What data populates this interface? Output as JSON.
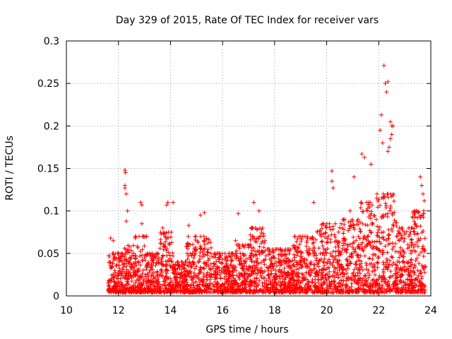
{
  "chart_data": {
    "type": "scatter",
    "title": "Day 329 of 2015, Rate Of TEC Index for receiver vars",
    "xlabel": "GPS time / hours",
    "ylabel": "ROTI / TECUs",
    "xlim": [
      10,
      24
    ],
    "ylim": [
      0,
      0.3
    ],
    "x_ticks": [
      10,
      12,
      14,
      16,
      18,
      20,
      22,
      24
    ],
    "y_ticks": [
      0,
      0.05,
      0.1,
      0.15,
      0.2,
      0.25,
      0.3
    ],
    "x_tick_labels": [
      "10",
      "12",
      "14",
      "16",
      "18",
      "20",
      "22",
      "24"
    ],
    "y_tick_labels": [
      "0",
      "0.05",
      "0.1",
      "0.15",
      "0.2",
      "0.25",
      "0.3"
    ],
    "grid": true,
    "marker": "+",
    "marker_color": "#ff0000",
    "x_range_of_data": [
      11.6,
      23.8
    ],
    "notable_points": [
      {
        "x": 12.25,
        "y": 0.148
      },
      {
        "x": 12.27,
        "y": 0.145
      },
      {
        "x": 12.25,
        "y": 0.13
      },
      {
        "x": 12.25,
        "y": 0.127
      },
      {
        "x": 12.3,
        "y": 0.12
      },
      {
        "x": 12.35,
        "y": 0.1
      },
      {
        "x": 12.3,
        "y": 0.088
      },
      {
        "x": 12.85,
        "y": 0.11
      },
      {
        "x": 12.9,
        "y": 0.107
      },
      {
        "x": 13.9,
        "y": 0.11
      },
      {
        "x": 13.85,
        "y": 0.107
      },
      {
        "x": 14.1,
        "y": 0.11
      },
      {
        "x": 15.3,
        "y": 0.098
      },
      {
        "x": 15.15,
        "y": 0.095
      },
      {
        "x": 16.6,
        "y": 0.097
      },
      {
        "x": 17.2,
        "y": 0.11
      },
      {
        "x": 17.4,
        "y": 0.1
      },
      {
        "x": 19.5,
        "y": 0.11
      },
      {
        "x": 20.2,
        "y": 0.147
      },
      {
        "x": 20.2,
        "y": 0.135
      },
      {
        "x": 20.25,
        "y": 0.127
      },
      {
        "x": 21.05,
        "y": 0.14
      },
      {
        "x": 21.35,
        "y": 0.167
      },
      {
        "x": 21.45,
        "y": 0.163
      },
      {
        "x": 21.7,
        "y": 0.155
      },
      {
        "x": 22.1,
        "y": 0.213
      },
      {
        "x": 22.05,
        "y": 0.195
      },
      {
        "x": 22.15,
        "y": 0.18
      },
      {
        "x": 22.2,
        "y": 0.271
      },
      {
        "x": 22.25,
        "y": 0.25
      },
      {
        "x": 22.35,
        "y": 0.252
      },
      {
        "x": 22.3,
        "y": 0.24
      },
      {
        "x": 22.45,
        "y": 0.205
      },
      {
        "x": 22.5,
        "y": 0.2
      },
      {
        "x": 22.5,
        "y": 0.19
      },
      {
        "x": 22.45,
        "y": 0.185
      },
      {
        "x": 22.4,
        "y": 0.175
      },
      {
        "x": 22.35,
        "y": 0.17
      },
      {
        "x": 22.55,
        "y": 0.2
      },
      {
        "x": 23.6,
        "y": 0.14
      },
      {
        "x": 23.65,
        "y": 0.13
      },
      {
        "x": 23.7,
        "y": 0.12
      },
      {
        "x": 23.75,
        "y": 0.112
      },
      {
        "x": 11.7,
        "y": 0.068
      },
      {
        "x": 11.8,
        "y": 0.065
      },
      {
        "x": 12.9,
        "y": 0.085
      },
      {
        "x": 13.7,
        "y": 0.08
      },
      {
        "x": 14.7,
        "y": 0.083
      },
      {
        "x": 16.5,
        "y": 0.065
      },
      {
        "x": 19.0,
        "y": 0.07
      },
      {
        "x": 20.9,
        "y": 0.1
      }
    ],
    "density_profile": [
      {
        "x_from": 11.6,
        "x_to": 12.2,
        "y_typical": 0.03,
        "y_top": 0.05
      },
      {
        "x_from": 12.2,
        "x_to": 12.6,
        "y_typical": 0.035,
        "y_top": 0.06
      },
      {
        "x_from": 12.6,
        "x_to": 13.1,
        "y_typical": 0.04,
        "y_top": 0.07
      },
      {
        "x_from": 13.1,
        "x_to": 13.6,
        "y_typical": 0.03,
        "y_top": 0.05
      },
      {
        "x_from": 13.6,
        "x_to": 14.1,
        "y_typical": 0.045,
        "y_top": 0.075
      },
      {
        "x_from": 14.1,
        "x_to": 14.6,
        "y_typical": 0.025,
        "y_top": 0.04
      },
      {
        "x_from": 14.6,
        "x_to": 15.6,
        "y_typical": 0.04,
        "y_top": 0.07
      },
      {
        "x_from": 15.6,
        "x_to": 16.5,
        "y_typical": 0.03,
        "y_top": 0.05
      },
      {
        "x_from": 16.5,
        "x_to": 17.0,
        "y_typical": 0.035,
        "y_top": 0.06
      },
      {
        "x_from": 17.0,
        "x_to": 17.7,
        "y_typical": 0.05,
        "y_top": 0.08
      },
      {
        "x_from": 17.7,
        "x_to": 18.7,
        "y_typical": 0.03,
        "y_top": 0.055
      },
      {
        "x_from": 18.7,
        "x_to": 19.6,
        "y_typical": 0.04,
        "y_top": 0.07
      },
      {
        "x_from": 19.6,
        "x_to": 20.6,
        "y_typical": 0.05,
        "y_top": 0.085
      },
      {
        "x_from": 20.6,
        "x_to": 21.3,
        "y_typical": 0.05,
        "y_top": 0.09
      },
      {
        "x_from": 21.3,
        "x_to": 21.9,
        "y_typical": 0.06,
        "y_top": 0.11
      },
      {
        "x_from": 21.9,
        "x_to": 22.7,
        "y_typical": 0.065,
        "y_top": 0.12
      },
      {
        "x_from": 22.7,
        "x_to": 23.3,
        "y_typical": 0.045,
        "y_top": 0.08
      },
      {
        "x_from": 23.3,
        "x_to": 23.8,
        "y_typical": 0.055,
        "y_top": 0.1
      }
    ]
  }
}
